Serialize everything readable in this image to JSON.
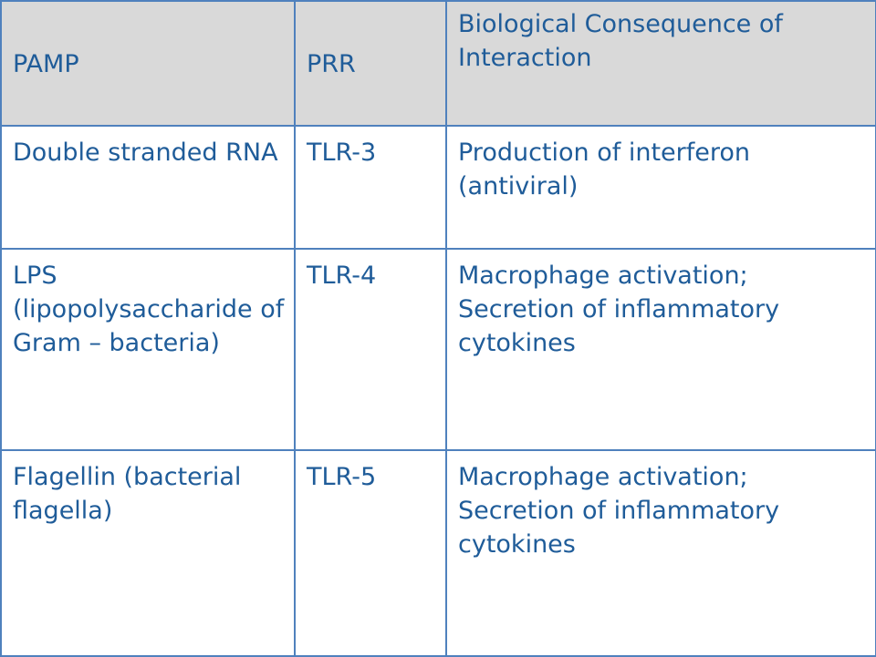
{
  "table": {
    "header": [
      "PAMP",
      "PRR",
      "Biological Consequence of Interaction"
    ],
    "rows": [
      [
        "Double stranded RNA",
        "TLR-3",
        "Production of interferon (antiviral)"
      ],
      [
        "LPS (lipopolysaccharide of Gram – bacteria)",
        "TLR-4",
        "Macrophage activation; Secretion of inflammatory cytokines"
      ],
      [
        "Flagellin (bacterial flagella)",
        "TLR-5",
        "Macrophage activation; Secretion of inflammatory cytokines"
      ]
    ]
  }
}
